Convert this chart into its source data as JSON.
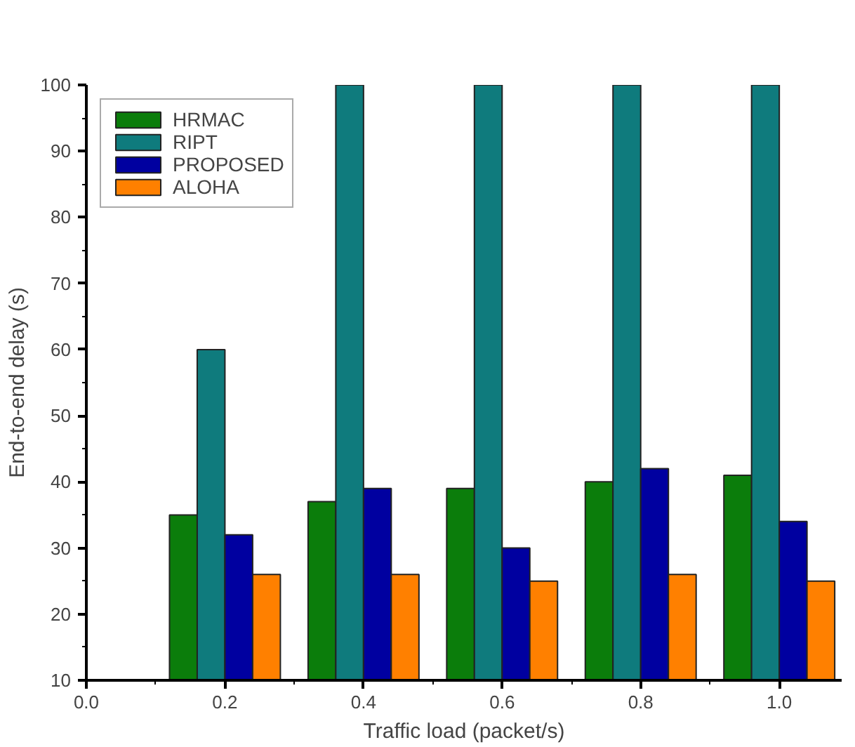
{
  "chart_data": {
    "type": "bar",
    "xlabel": "Traffic load (packet/s)",
    "ylabel": "End-to-end delay (s)",
    "x": [
      0.2,
      0.4,
      0.6,
      0.8,
      1.0
    ],
    "series": [
      {
        "name": "HRMAC",
        "color": "#0b7d0b",
        "values": [
          35,
          37,
          39,
          40,
          41
        ]
      },
      {
        "name": "RIPT",
        "color": "#0f7b7d",
        "values": [
          60,
          100,
          100,
          100,
          100
        ]
      },
      {
        "name": "PROPOSED",
        "color": "#0000a0",
        "values": [
          32,
          39,
          30,
          42,
          34
        ]
      },
      {
        "name": "ALOHA",
        "color": "#ff8000",
        "values": [
          26,
          26,
          25,
          26,
          25
        ]
      }
    ],
    "xlim": [
      0,
      1.09
    ],
    "ylim": [
      10,
      100
    ],
    "xticks": [
      {
        "value": 0,
        "label": "0.0"
      },
      0.2,
      0.4,
      0.6,
      0.8,
      {
        "value": 1.0,
        "label": "1.0"
      }
    ],
    "yticks": [
      10,
      20,
      30,
      40,
      50,
      60,
      70,
      80,
      90,
      100
    ],
    "legend": "top left",
    "grid": false
  }
}
